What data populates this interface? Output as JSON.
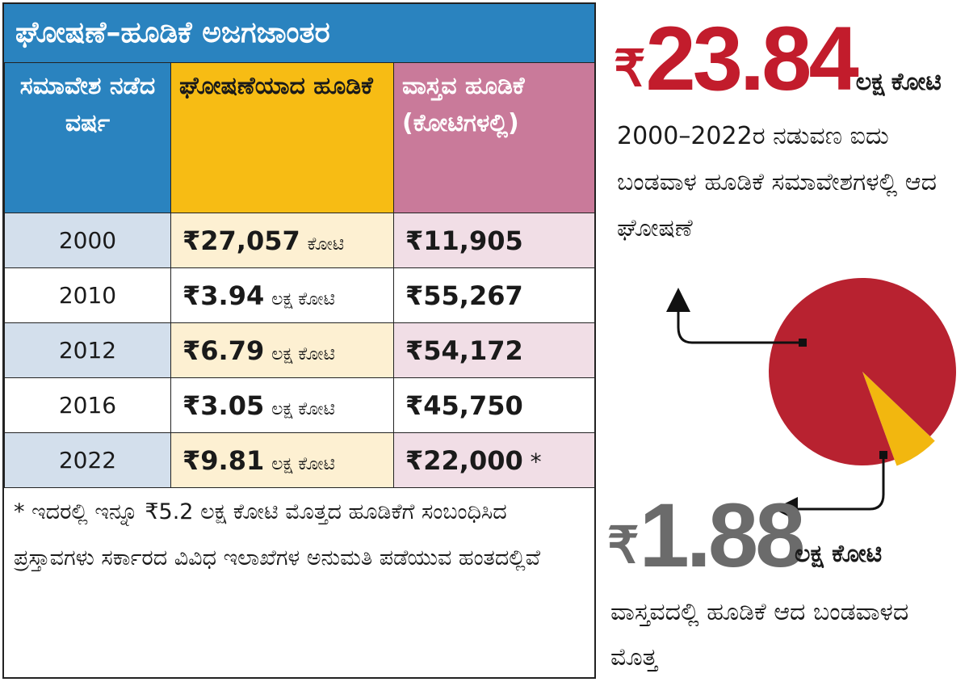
{
  "title": "ಘೋಷಣೆ–ಹೂಡಿಕೆ ಅಜಗಜಾಂತರ",
  "headers": {
    "year": "ಸಮಾವೇಶ ನಡೆದ ವರ್ಷ",
    "announced": "ಘೋಷಣೆಯಾದ ಹೂಡಿಕೆ",
    "actual": "ವಾಸ್ತವ ಹೂಡಿಕೆ (ಕೋಟಿಗಳಲ್ಲಿ)"
  },
  "rows": [
    {
      "year": "2000",
      "ann_num": "₹27,057",
      "ann_unit": "ಕೋಟಿ",
      "actual": "₹11,905",
      "mark": ""
    },
    {
      "year": "2010",
      "ann_num": "₹3.94",
      "ann_unit": "ಲಕ್ಷ ಕೋಟಿ",
      "actual": "₹55,267",
      "mark": ""
    },
    {
      "year": "2012",
      "ann_num": "₹6.79",
      "ann_unit": "ಲಕ್ಷ ಕೋಟಿ",
      "actual": "₹54,172",
      "mark": ""
    },
    {
      "year": "2016",
      "ann_num": "₹3.05",
      "ann_unit": "ಲಕ್ಷ ಕೋಟಿ",
      "actual": "₹45,750",
      "mark": ""
    },
    {
      "year": "2022",
      "ann_num": "₹9.81",
      "ann_unit": "ಲಕ್ಷ ಕೋಟಿ",
      "actual": "₹22,000",
      "mark": "*"
    }
  ],
  "note": "* ಇದರಲ್ಲಿ ಇನ್ನೂ ₹5.2 ಲಕ್ಷ ಕೋಟಿ ಮೊತ್ತದ ಹೂಡಿಕೆಗೆ ಸಂಬಂಧಿಸಿದ ಪ್ರಸ್ತಾವಗಳು ಸರ್ಕಾರದ ವಿವಿಧ ಇಲಾಖೆಗಳ ಅನುಮತಿ ಪಡೆಯುವ ಹಂತದಲ್ಲಿವೆ",
  "callouts": {
    "announced_total": {
      "currency": "₹",
      "value": "23.84",
      "unit": "ಲಕ್ಷ ಕೋಟಿ",
      "desc": "2000–2022ರ ನಡುವಣ ಐದು ಬಂಡವಾಳ ಹೂಡಿಕೆ ಸಮಾವೇಶಗಳಲ್ಲಿ ಆದ ಘೋಷಣೆ"
    },
    "actual_total": {
      "currency": "₹",
      "value": "1.88",
      "unit": "ಲಕ್ಷ ಕೋಟಿ",
      "desc": "ವಾಸ್ತವದಲ್ಲಿ ಹೂಡಿಕೆ ಆದ ಬಂಡವಾಳದ ಮೊತ್ತ"
    }
  },
  "colors": {
    "announced": "#b82230",
    "actual": "#f2b70f",
    "header_blue": "#2a83bf",
    "header_yellow": "#f7bc14",
    "header_pink": "#c97a9a"
  },
  "chart_data": {
    "type": "pie",
    "slices": [
      {
        "value": 23.84,
        "color": "#b82230"
      },
      {
        "value": 1.88,
        "color": "#f2b70f"
      }
    ]
  }
}
